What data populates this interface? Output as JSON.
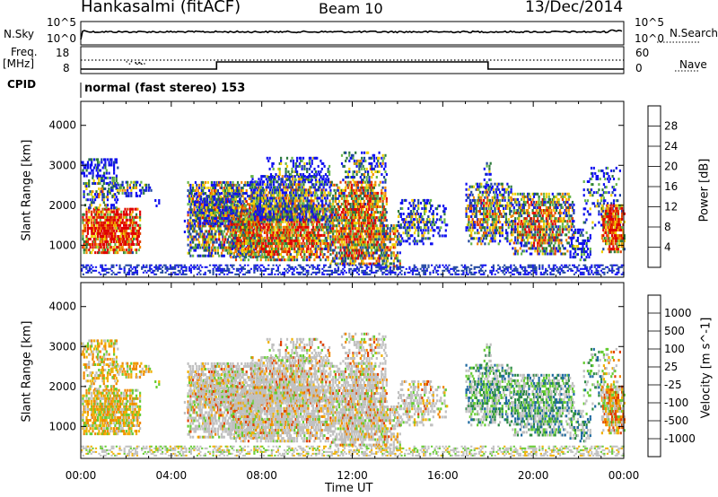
{
  "header": {
    "station": "Hankasalmi (fitACF)",
    "beam": "Beam 10",
    "date": "13/Dec/2014"
  },
  "side_labels": {
    "nsky": "N.Sky",
    "nsearch": "N.Search",
    "freq": "Freq.",
    "freq_unit": "[MHz]",
    "cpid": "CPID",
    "nave": "Nave"
  },
  "mode_label": "normal (fast stereo) 153",
  "noise_panel": {
    "tick_top": "10^5",
    "tick_bottom": "10^0"
  },
  "freq_panel": {
    "left_ticks": [
      "18",
      "8"
    ],
    "right_ticks": [
      "60",
      "0"
    ]
  },
  "colors": {
    "power": [
      "#1010f0",
      "#1e44a0",
      "#2c7a3a",
      "#66b44a",
      "#f0d000",
      "#f08800",
      "#e04000",
      "#e00000"
    ],
    "velocity": [
      "#ee0000",
      "#e04000",
      "#f08800",
      "#f0b000",
      "#c8c8c8",
      "#66cc33",
      "#2c8a44",
      "#1e6aa0",
      "#1020d0"
    ],
    "ground_scatter": "#c0c0c0"
  },
  "chart_data": {
    "type": "heatmap",
    "panels": [
      {
        "name": "power",
        "ylabel": "Slant Range [km]",
        "y_ticks": [
          1000,
          2000,
          3000,
          4000
        ],
        "ylim": [
          200,
          4600
        ],
        "colorbar_label": "Power [dB]",
        "colorbar_ticks": [
          "4",
          "8",
          "12",
          "16",
          "20",
          "24",
          "28"
        ],
        "xlim": [
          0,
          24
        ]
      },
      {
        "name": "velocity",
        "ylabel": "Slant Range [km]",
        "y_ticks": [
          1000,
          2000,
          3000,
          4000
        ],
        "ylim": [
          200,
          4600
        ],
        "colorbar_label": "Velocity [m s^-1]",
        "colorbar_ticks": [
          "-1000",
          "-500",
          "-100",
          "-25",
          "25",
          "100",
          "500",
          "1000"
        ],
        "xlim": [
          0,
          24
        ]
      }
    ],
    "x_ticks": [
      "00:00",
      "04:00",
      "08:00",
      "12:00",
      "16:00",
      "20:00",
      "00:00"
    ],
    "xlabel": "Time UT",
    "frequency_steps": [
      {
        "from": 0,
        "to": 6,
        "level": "low"
      },
      {
        "from": 6,
        "to": 18,
        "level": "high"
      },
      {
        "from": 18,
        "to": 24,
        "level": "low"
      }
    ]
  }
}
